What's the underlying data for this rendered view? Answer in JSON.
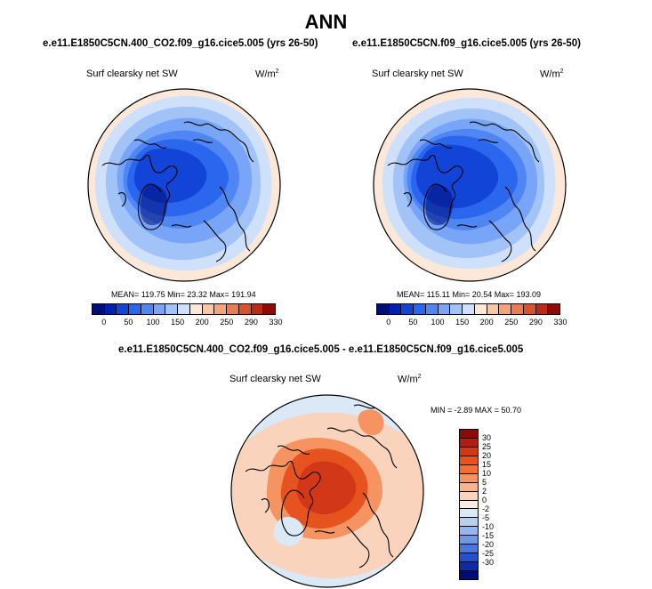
{
  "title": "ANN",
  "panels": [
    {
      "case": "e.e11.E1850C5CN.400_CO2.f09_g16.cice5.005 (yrs 26-50)",
      "variable": "Surf clearsky net SW",
      "units_base": "W/m",
      "units_exp": "2",
      "stats": "MEAN= 119.75  Min=  23.32  Max= 191.94"
    },
    {
      "case": "e.e11.E1850C5CN.f09_g16.cice5.005 (yrs 26-50)",
      "variable": "Surf clearsky net SW",
      "units_base": "W/m",
      "units_exp": "2",
      "stats": "MEAN= 115.11  Min=  20.54  Max= 193.09"
    }
  ],
  "diff_panel": {
    "case": "e.e11.E1850C5CN.400_CO2.f09_g16.cice5.005 - e.e11.E1850C5CN.f09_g16.cice5.005",
    "variable": "Surf clearsky net SW",
    "units_base": "W/m",
    "units_exp": "2",
    "stats": "MIN =  -2.89 MAX =  50.70"
  },
  "colorbar_main": {
    "colors": [
      "#000e7a",
      "#0022b4",
      "#1244d8",
      "#2a66ee",
      "#4f86f4",
      "#78a5f7",
      "#a2c3f8",
      "#cfe0fa",
      "#fbe8d8",
      "#f8c7a6",
      "#f2a479",
      "#e97c50",
      "#d9522c",
      "#bb2a12",
      "#8f0a04"
    ],
    "labels": [
      "0",
      "50",
      "100",
      "150",
      "200",
      "250",
      "290",
      "330"
    ]
  },
  "colorbar_diff": {
    "colors": [
      "#8a0a04",
      "#b01e0c",
      "#d23818",
      "#e6531f",
      "#f26e33",
      "#f59460",
      "#f8b48e",
      "#fad3bc",
      "#f9ece3",
      "#dbe8f6",
      "#b9d0f2",
      "#95b6ee",
      "#6f98e7",
      "#4a76de",
      "#2450cc",
      "#0a2ca4",
      "#000d70"
    ],
    "labels": [
      "30",
      "25",
      "20",
      "15",
      "10",
      "5",
      "2",
      "0",
      "-2",
      "-5",
      "-10",
      "-15",
      "-20",
      "-25",
      "-30"
    ]
  },
  "map_fill_colors": {
    "ocean_outer": "#fbe8d8",
    "ring_1": "#cfe0fa",
    "ring_2": "#a2c3f8",
    "ring_3": "#78a5f7",
    "ring_4": "#4f86f4",
    "core": "#2a66ee",
    "deep": "#1244d8",
    "diff_base": "#fad3bc",
    "diff_ocean": "#dbe8f6",
    "diff_mid": "#f59460",
    "diff_core": "#e6531f",
    "diff_hot": "#d23818"
  }
}
